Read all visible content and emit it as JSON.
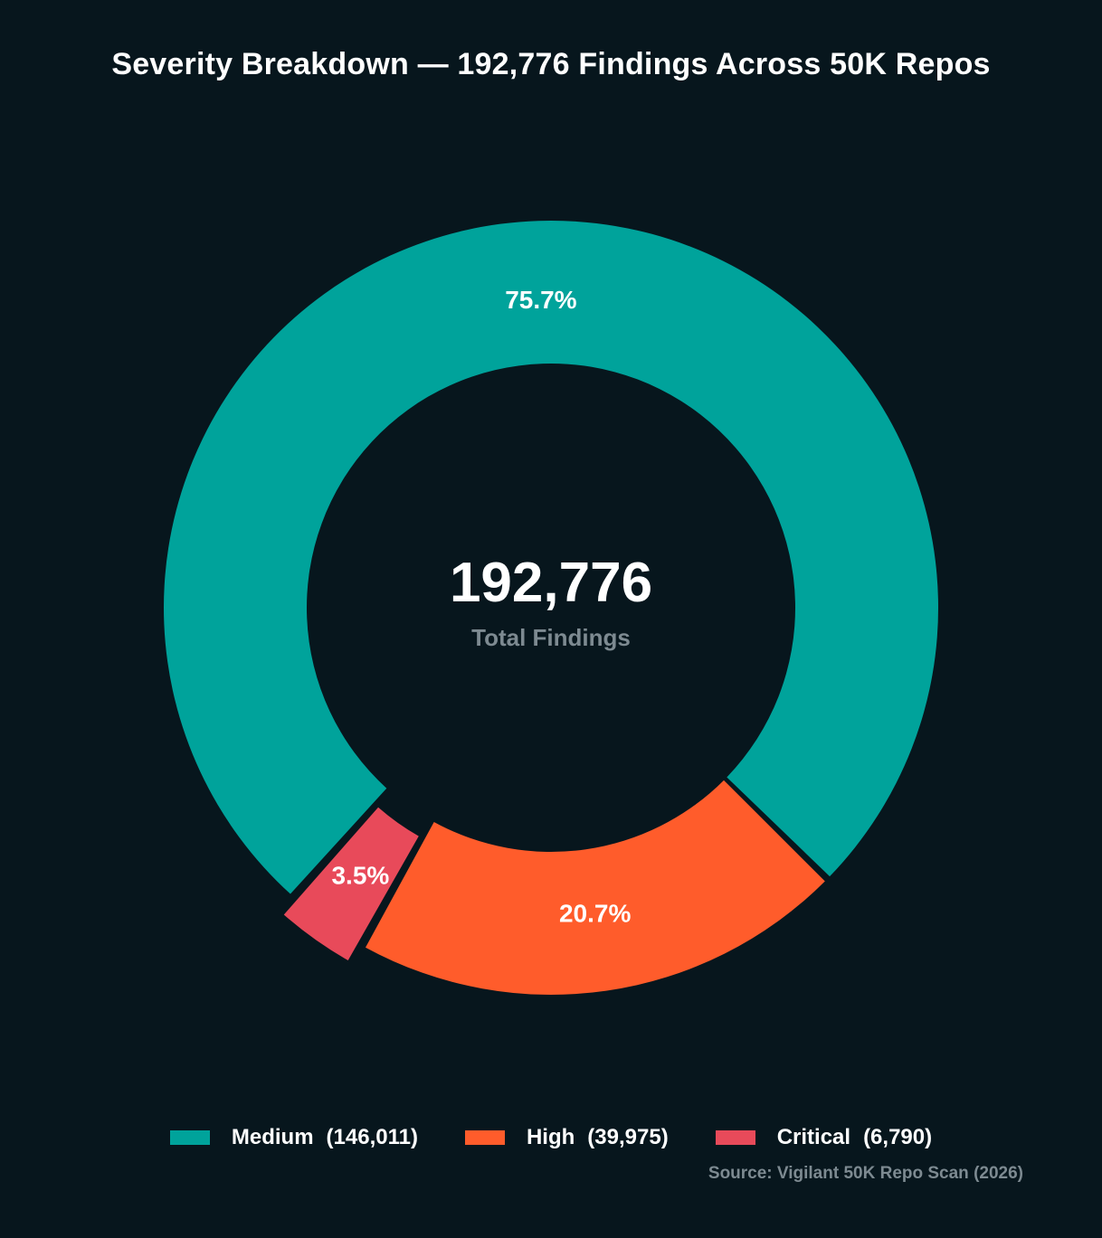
{
  "chart_data": {
    "type": "pie",
    "title": "Severity Breakdown — 192,776 Findings Across 50K Repos",
    "donut": true,
    "center": {
      "value": "192,776",
      "label": "Total Findings"
    },
    "slices": [
      {
        "name": "Medium",
        "value": 146011,
        "percent_label": "75.7%",
        "count_label": "(146,011)",
        "color": "#00a39b",
        "exploded": false
      },
      {
        "name": "High",
        "value": 39975,
        "percent_label": "20.7%",
        "count_label": "(39,975)",
        "color": "#ff5c2b",
        "exploded": false
      },
      {
        "name": "Critical",
        "value": 6790,
        "percent_label": "3.5%",
        "count_label": "(6,790)",
        "color": "#e84a5a",
        "exploded": true
      }
    ],
    "legend_position": "bottom",
    "source": "Source: Vigilant 50K Repo Scan (2026)"
  },
  "colors": {
    "background": "#07161d",
    "text": "#ffffff",
    "muted_text": "#7d8a91"
  }
}
